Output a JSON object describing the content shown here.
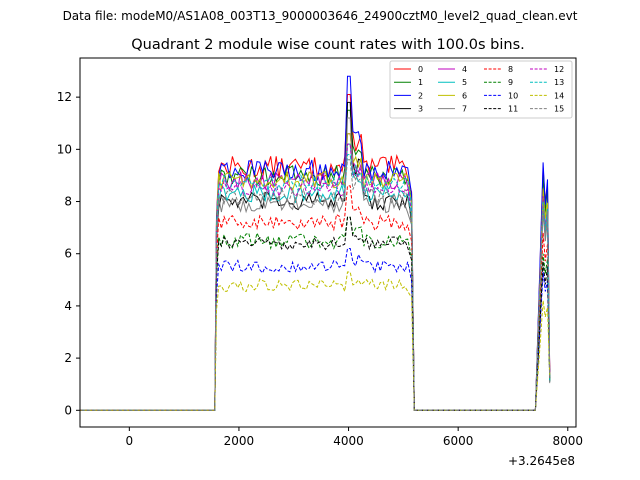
{
  "header": {
    "data_file": "Data file: modeM0/AS1A08_003T13_9000003646_24900cztM0_level2_quad_clean.evt"
  },
  "chart_data": {
    "type": "line",
    "title": "Quadrant 2 module wise count rates with 100.0s bins.",
    "xlabel": "",
    "ylabel": "",
    "x_offset_label": "+3.2645e8",
    "xlim": [
      -900,
      8150
    ],
    "ylim": [
      -0.64,
      13.5
    ],
    "xticks": [
      0,
      2000,
      4000,
      6000,
      8000
    ],
    "xtick_labels": [
      "0",
      "2000",
      "4000",
      "6000",
      "8000"
    ],
    "yticks": [
      0,
      2,
      4,
      6,
      8,
      10,
      12
    ],
    "ytick_labels": [
      "0",
      "2",
      "4",
      "6",
      "8",
      "10",
      "12"
    ],
    "grid": false,
    "legend_position": "top-right",
    "legend_columns": 4,
    "segments": [
      {
        "start": -1350,
        "end": -950
      },
      {
        "start": 1570,
        "end": 5170
      },
      {
        "start": 7420,
        "end": 7670
      }
    ],
    "series": [
      {
        "name": "0",
        "color": "#ff0000",
        "dash": "solid",
        "level": 9.3,
        "start_level": 10.6,
        "noise": 0.45,
        "peak": 12.1,
        "tail": 9.3
      },
      {
        "name": "1",
        "color": "#008000",
        "dash": "solid",
        "level": 9.0,
        "start_level": 10.4,
        "noise": 0.4,
        "peak": 11.5,
        "tail": 9.0
      },
      {
        "name": "2",
        "color": "#0000ff",
        "dash": "solid",
        "level": 9.2,
        "start_level": 10.0,
        "noise": 0.4,
        "peak": 12.8,
        "tail": 9.5
      },
      {
        "name": "3",
        "color": "#000000",
        "dash": "solid",
        "level": 8.0,
        "start_level": 9.0,
        "noise": 0.35,
        "peak": 11.8,
        "tail": 8.0
      },
      {
        "name": "4",
        "color": "#bf00bf",
        "dash": "solid",
        "level": 8.8,
        "start_level": 9.0,
        "noise": 0.35,
        "peak": 10.6,
        "tail": 8.3
      },
      {
        "name": "5",
        "color": "#00bfbf",
        "dash": "solid",
        "level": 8.3,
        "start_level": 8.6,
        "noise": 0.35,
        "peak": 10.2,
        "tail": 8.2
      },
      {
        "name": "6",
        "color": "#bfbf00",
        "dash": "solid",
        "level": 8.8,
        "start_level": 9.4,
        "noise": 0.35,
        "peak": 10.6,
        "tail": 8.5
      },
      {
        "name": "7",
        "color": "#808080",
        "dash": "solid",
        "level": 7.9,
        "start_level": 8.8,
        "noise": 0.35,
        "peak": 11.2,
        "tail": 7.6
      },
      {
        "name": "8",
        "color": "#ff0000",
        "dash": "dashed",
        "level": 7.2,
        "start_level": 8.6,
        "noise": 0.3,
        "peak": 8.6,
        "tail": 6.8
      },
      {
        "name": "9",
        "color": "#008000",
        "dash": "dashed",
        "level": 6.5,
        "start_level": 6.8,
        "noise": 0.3,
        "peak": 7.4,
        "tail": 6.0
      },
      {
        "name": "10",
        "color": "#0000ff",
        "dash": "dashed",
        "level": 5.5,
        "start_level": 8.3,
        "noise": 0.25,
        "peak": 6.2,
        "tail": 5.3
      },
      {
        "name": "11",
        "color": "#000000",
        "dash": "dashed",
        "level": 6.4,
        "start_level": 6.2,
        "noise": 0.25,
        "peak": 7.4,
        "tail": 5.7
      },
      {
        "name": "12",
        "color": "#bf00bf",
        "dash": "dashed",
        "level": 8.5,
        "start_level": 9.0,
        "noise": 0.3,
        "peak": 10.2,
        "tail": 8.2
      },
      {
        "name": "13",
        "color": "#00bfbf",
        "dash": "dashed",
        "level": 8.7,
        "start_level": 8.0,
        "noise": 0.3,
        "peak": 9.8,
        "tail": 8.0
      },
      {
        "name": "14",
        "color": "#bfbf00",
        "dash": "dashed",
        "level": 4.8,
        "start_level": 5.4,
        "noise": 0.25,
        "peak": 5.3,
        "tail": 4.2
      },
      {
        "name": "15",
        "color": "#808080",
        "dash": "dashed",
        "level": 8.2,
        "start_level": 8.4,
        "noise": 0.3,
        "peak": 9.6,
        "tail": 7.9
      }
    ]
  }
}
